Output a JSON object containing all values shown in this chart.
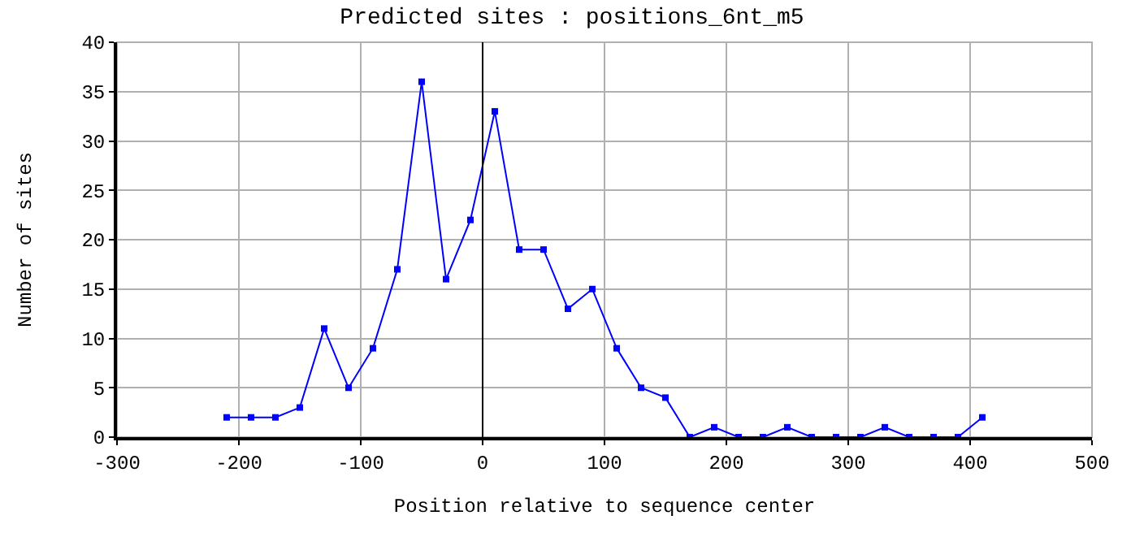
{
  "chart_data": {
    "type": "line",
    "title": "Predicted sites : positions_6nt_m5",
    "xlabel": "Position relative to sequence center",
    "ylabel": "Number of sites",
    "x": [
      -210,
      -190,
      -170,
      -150,
      -130,
      -110,
      -90,
      -70,
      -50,
      -30,
      -10,
      10,
      30,
      50,
      70,
      90,
      110,
      130,
      150,
      170,
      190,
      210,
      230,
      250,
      270,
      290,
      310,
      330,
      350,
      370,
      390,
      410
    ],
    "series": [
      {
        "color": "#0000ff",
        "values": [
          2,
          2,
          2,
          3,
          11,
          5,
          9,
          17,
          36,
          16,
          22,
          33,
          19,
          19,
          13,
          15,
          9,
          5,
          4,
          0,
          1,
          0,
          0,
          1,
          0,
          0,
          0,
          1,
          0,
          0,
          0,
          2
        ]
      }
    ],
    "xlim": [
      -300,
      500
    ],
    "xticks": [
      -300,
      -200,
      -100,
      0,
      100,
      200,
      300,
      400,
      500
    ],
    "ylim": [
      0,
      40
    ],
    "yticks": [
      0,
      5,
      10,
      15,
      20,
      25,
      30,
      35,
      40
    ],
    "ref_lines": [
      {
        "axis": "x",
        "value": 0,
        "color": "#000000"
      }
    ],
    "grid": true,
    "marker": "square",
    "line_style": "solid"
  }
}
